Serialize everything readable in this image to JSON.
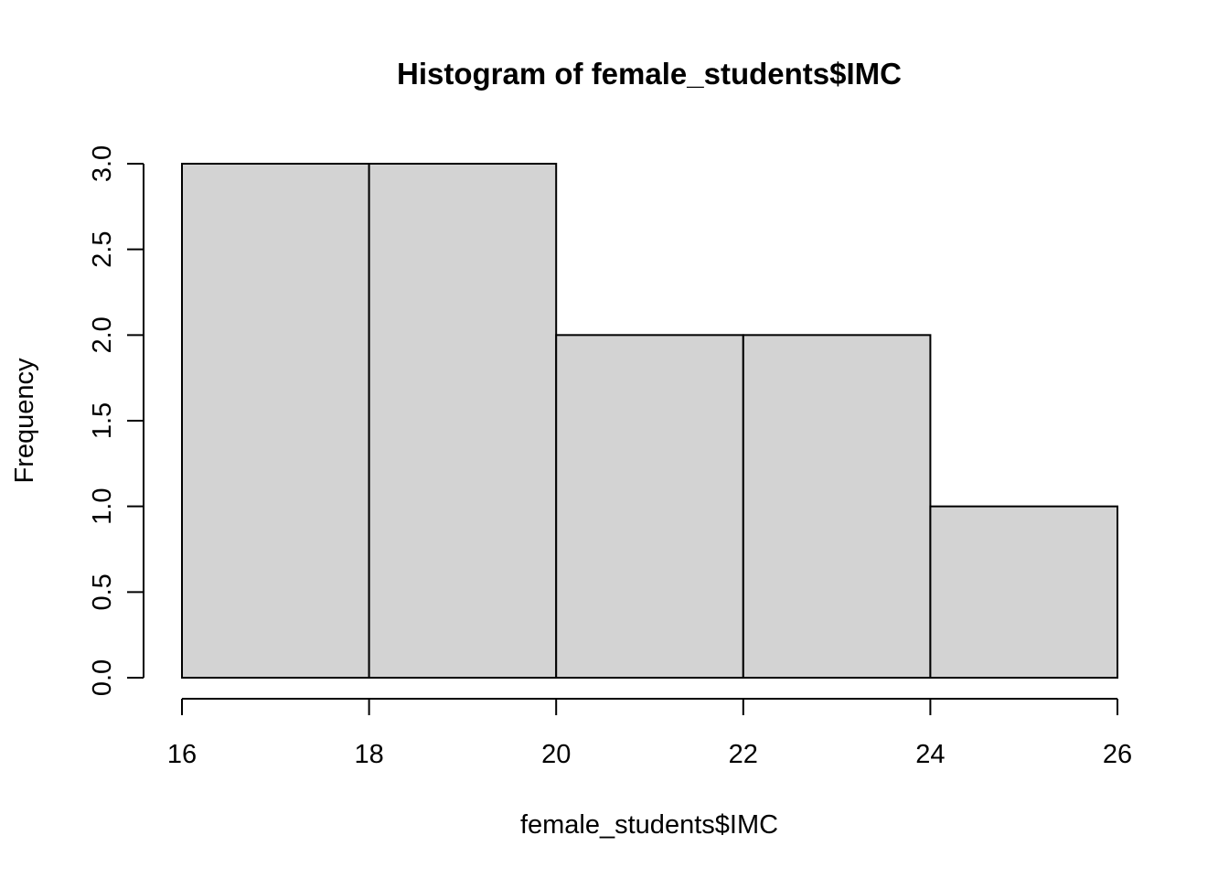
{
  "chart_data": {
    "type": "bar",
    "title": "Histogram of female_students$IMC",
    "xlabel": "female_students$IMC",
    "ylabel": "Frequency",
    "bins": [
      {
        "x0": 16,
        "x1": 18,
        "count": 3
      },
      {
        "x0": 18,
        "x1": 20,
        "count": 3
      },
      {
        "x0": 20,
        "x1": 22,
        "count": 2
      },
      {
        "x0": 22,
        "x1": 24,
        "count": 2
      },
      {
        "x0": 24,
        "x1": 26,
        "count": 1
      }
    ],
    "xlim": [
      16,
      26
    ],
    "ylim": [
      0,
      3
    ],
    "x_ticks": [
      16,
      18,
      20,
      22,
      24,
      26
    ],
    "x_tick_labels": [
      "16",
      "18",
      "20",
      "22",
      "24",
      "26"
    ],
    "y_ticks": [
      0,
      0.5,
      1,
      1.5,
      2,
      2.5,
      3
    ],
    "y_tick_labels": [
      "0.0",
      "0.5",
      "1.0",
      "1.5",
      "2.0",
      "2.5",
      "3.0"
    ],
    "grid": false,
    "legend": "none",
    "bar_color": "#d3d3d3",
    "border_color": "#000000"
  }
}
